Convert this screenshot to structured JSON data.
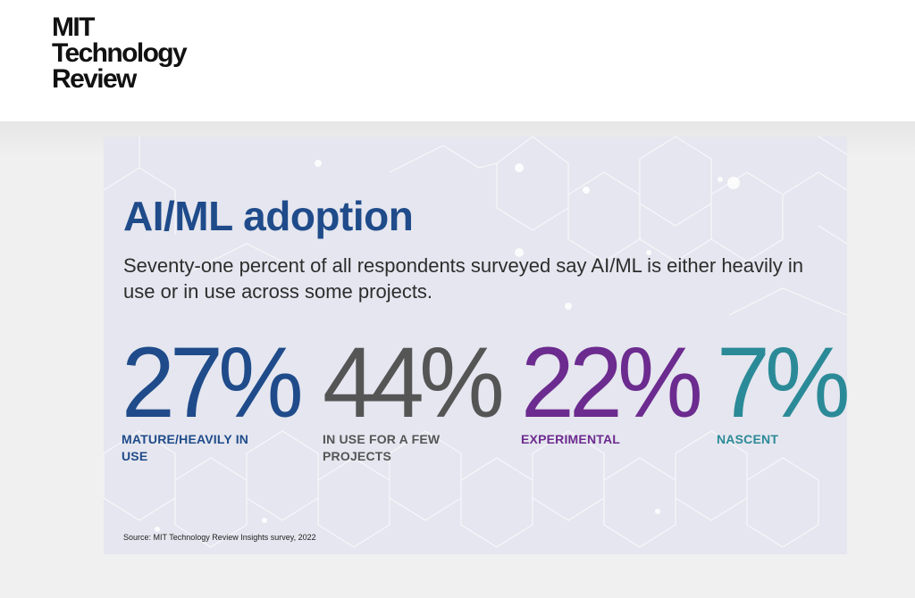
{
  "header": {
    "logo_lines": [
      "MIT",
      "Technology",
      "Review"
    ]
  },
  "infographic": {
    "title": "AI/ML adoption",
    "subtitle": "Seventy-one percent of all respondents surveyed say AI/ML is either heavily in use or in use across some projects.",
    "stats": [
      {
        "value": "27%",
        "label": "MATURE/HEAVILY IN USE",
        "color": "#1f4b8a"
      },
      {
        "value": "44%",
        "label": "IN USE FOR A FEW PROJECTS",
        "color": "#555555"
      },
      {
        "value": "22%",
        "label": "EXPERIMENTAL",
        "color": "#6c2b8f"
      },
      {
        "value": "7%",
        "label": "NASCENT",
        "color": "#2b8a97"
      }
    ],
    "source": "Source: MIT Technology Review Insights survey, 2022",
    "background_color": "#e5e6ef"
  }
}
